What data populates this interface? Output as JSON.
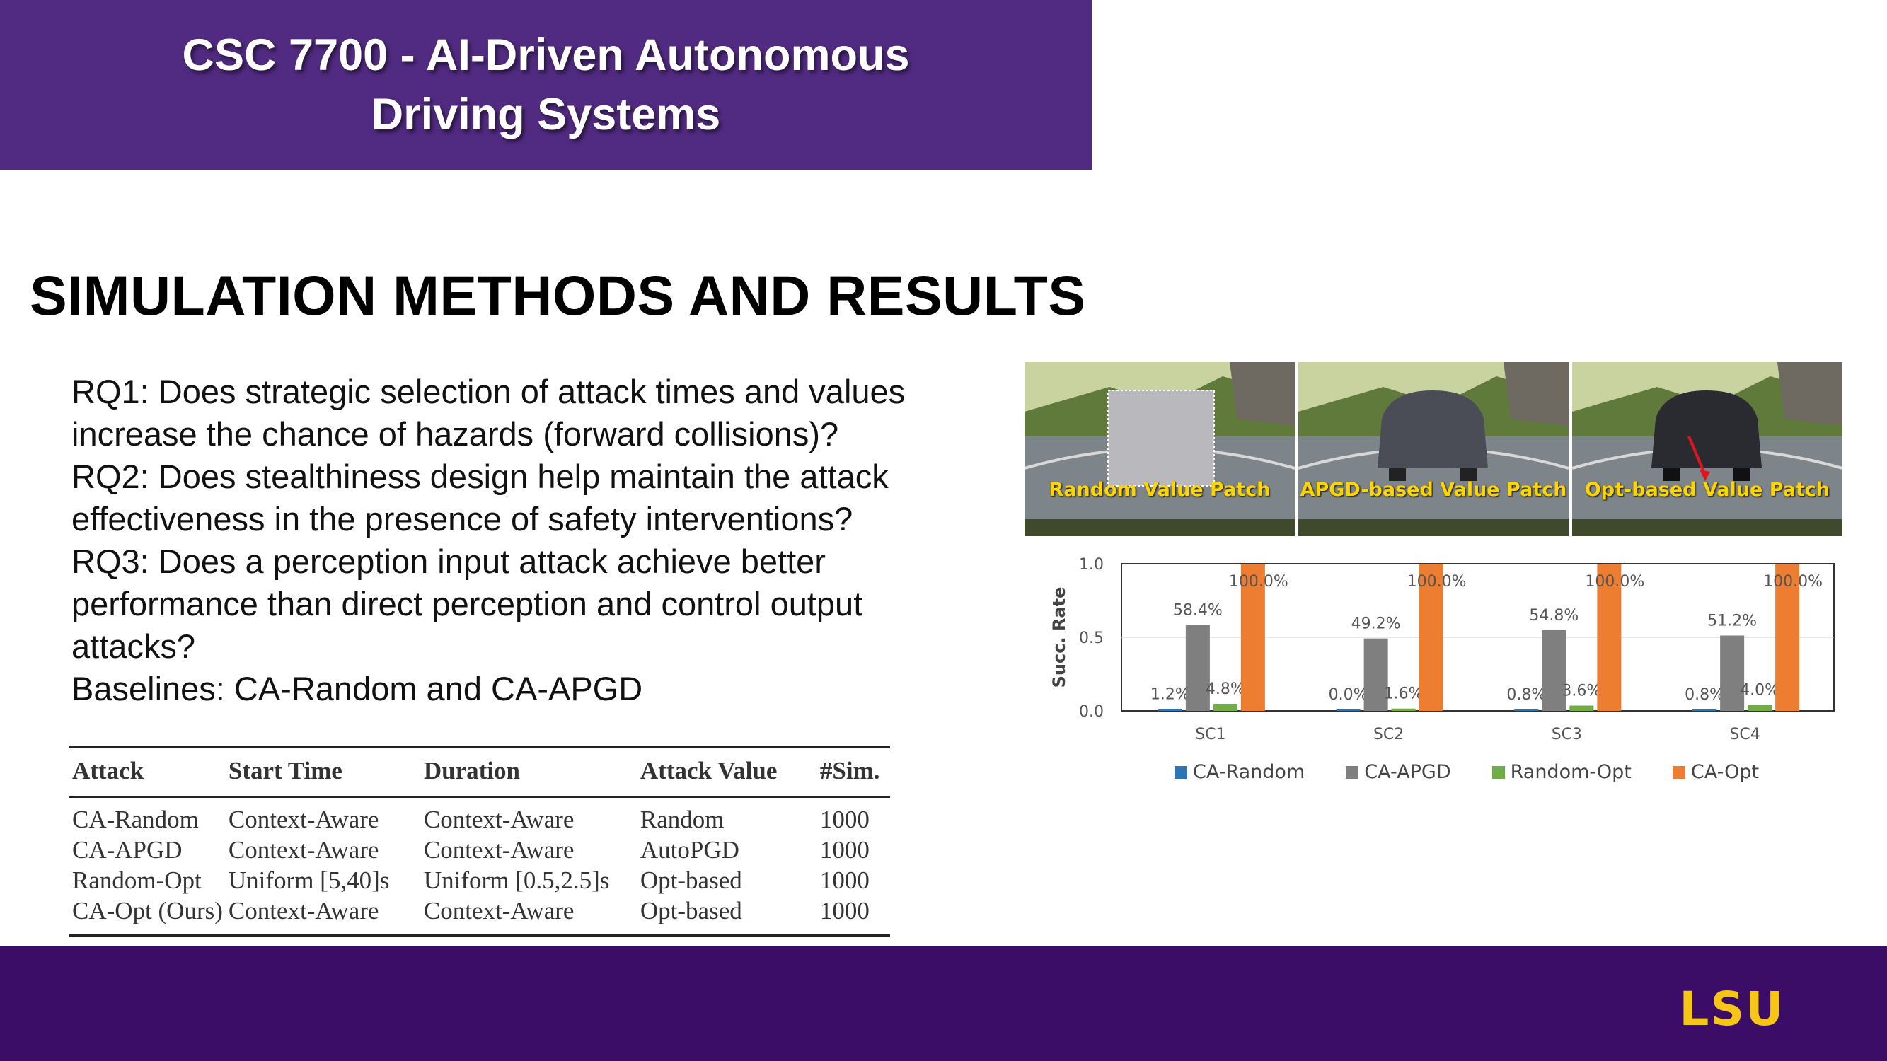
{
  "header": {
    "title_line1": "CSC 7700 - AI-Driven Autonomous",
    "title_line2": "Driving Systems"
  },
  "section_title": "SIMULATION METHODS AND RESULTS",
  "questions": [
    "RQ1: Does strategic selection of attack times and values",
    "increase the chance of hazards (forward collisions)?",
    "RQ2: Does stealthiness design help maintain the attack",
    "effectiveness in the presence of safety interventions?",
    "RQ3: Does a perception input attack achieve better",
    "performance than direct perception and control output",
    "attacks?",
    "Baselines: CA-Random and CA-APGD"
  ],
  "table": {
    "headers": [
      "Attack",
      "Start Time",
      "Duration",
      "Attack Value",
      "#Sim."
    ],
    "rows": [
      [
        "CA-Random",
        "Context-Aware",
        "Context-Aware",
        "Random",
        "1000"
      ],
      [
        "CA-APGD",
        "Context-Aware",
        "Context-Aware",
        "AutoPGD",
        "1000"
      ],
      [
        "Random-Opt",
        "Uniform [5,40]s",
        "Uniform [0.5,2.5]s",
        "Opt-based",
        "1000"
      ],
      [
        "CA-Opt (Ours)",
        "Context-Aware",
        "Context-Aware",
        "Opt-based",
        "1000"
      ]
    ]
  },
  "images": {
    "captions": [
      "Random Value Patch",
      "APGD-based  Value Patch",
      "Opt-based Value Patch"
    ],
    "caption_color": "#ffd400"
  },
  "chart_data": {
    "type": "bar",
    "categories": [
      "SC1",
      "SC2",
      "SC3",
      "SC4"
    ],
    "ylabel": "Succ. Rate",
    "ylim": [
      0,
      1.0
    ],
    "yticks": [
      "0.0",
      "0.5",
      "1.0"
    ],
    "legend_position": "bottom",
    "series": [
      {
        "name": "CA-Random",
        "color": "#2e75b6",
        "values": [
          0.012,
          0.0,
          0.008,
          0.008
        ],
        "labels": [
          "1.2%",
          "0.0%",
          "0.8%",
          "0.8%"
        ]
      },
      {
        "name": "CA-APGD",
        "color": "#7f7f7f",
        "values": [
          0.584,
          0.492,
          0.548,
          0.512
        ],
        "labels": [
          "58.4%",
          "49.2%",
          "54.8%",
          "51.2%"
        ]
      },
      {
        "name": "Random-Opt",
        "color": "#70ad47",
        "values": [
          0.048,
          0.016,
          0.036,
          0.04
        ],
        "labels": [
          "4.8%",
          "1.6%",
          "3.6%",
          "4.0%"
        ]
      },
      {
        "name": "CA-Opt",
        "color": "#ed7d31",
        "values": [
          1.0,
          1.0,
          1.0,
          1.0
        ],
        "labels": [
          "100.0%",
          "100.0%",
          "100.0%",
          "100.0%"
        ]
      }
    ]
  },
  "footer": {
    "logo_text": "LSU",
    "logo_color": "#f5c518"
  }
}
